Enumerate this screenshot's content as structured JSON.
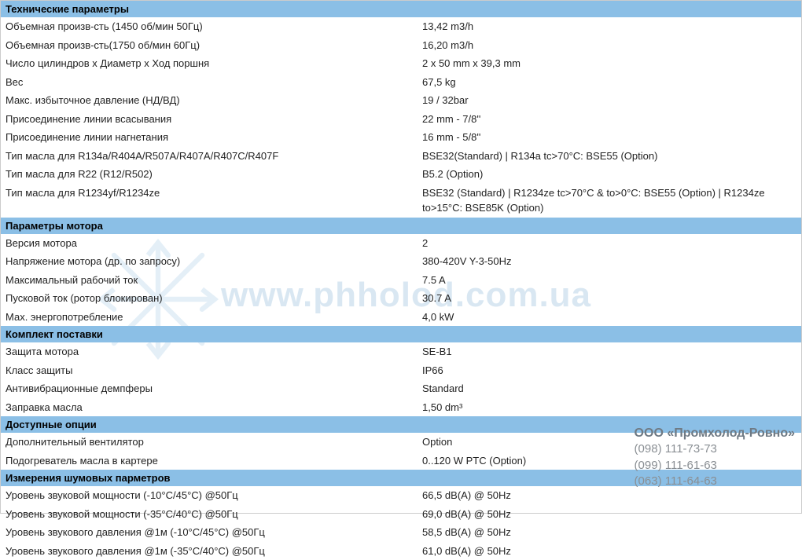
{
  "colors": {
    "header_bg": "#8bbfe6",
    "text": "#222222",
    "watermark_text": "rgba(120,170,210,0.28)",
    "company_text": "#8a8f94"
  },
  "watermark": {
    "url_text": "www.phholod.com.ua"
  },
  "company": {
    "name": "ООО «Промхолод-Ровно»",
    "phone1": "(098) 111-73-73",
    "phone2": "(099) 111-61-63",
    "phone3": "(063) 111-64-63"
  },
  "sections": [
    {
      "title": "Технические параметры",
      "rows": [
        {
          "label": "Объемная произв-сть (1450 об/мин 50Гц)",
          "value": "13,42 m3/h"
        },
        {
          "label": "Объемная произв-сть(1750 об/мин 60Гц)",
          "value": "16,20 m3/h"
        },
        {
          "label": "Число цилиндров x Диаметр x Ход поршня",
          "value": "2 x 50 mm x 39,3 mm"
        },
        {
          "label": "Вес",
          "value": "67,5 kg"
        },
        {
          "label": "Макс. избыточное давление (НД/ВД)",
          "value": "19 / 32bar"
        },
        {
          "label": "Присоединение линии всасывания",
          "value": "22 mm - 7/8''"
        },
        {
          "label": "Присоединение линии нагнетания",
          "value": "16 mm - 5/8''"
        },
        {
          "label": "Тип масла для R134a/R404A/R507A/R407A/R407C/R407F",
          "value": "BSE32(Standard) | R134a tc>70°C: BSE55 (Option)"
        },
        {
          "label": "Тип масла для R22 (R12/R502)",
          "value": "B5.2 (Option)"
        },
        {
          "label": "Тип масла для R1234yf/R1234ze",
          "value": "BSE32 (Standard) | R1234ze tc>70°C & to>0°C: BSE55 (Option) | R1234ze to>15°C: BSE85K (Option)"
        }
      ]
    },
    {
      "title": "Параметры мотора",
      "rows": [
        {
          "label": "Версия мотора",
          "value": "2"
        },
        {
          "label": "Напряжение мотора (др. по запросу)",
          "value": "380-420V Y-3-50Hz"
        },
        {
          "label": "Максимальный рабочий ток",
          "value": "7.5 A"
        },
        {
          "label": "Пусковой ток (ротор блокирован)",
          "value": "30.7 A"
        },
        {
          "label": "Мах. энергопотребление",
          "value": "4,0 kW"
        }
      ]
    },
    {
      "title": "Комплект поставки",
      "rows": [
        {
          "label": "Защита мотора",
          "value": "SE-B1"
        },
        {
          "label": "Класс защиты",
          "value": "IP66"
        },
        {
          "label": "Антивибрационные демпферы",
          "value": "Standard"
        },
        {
          "label": "Заправка масла",
          "value": "1,50 dm³"
        }
      ]
    },
    {
      "title": "Доступные опции",
      "rows": [
        {
          "label": "Дополнительный вентилятор",
          "value": "Option"
        },
        {
          "label": "Подогреватель масла в картере",
          "value": "0..120 W PTC (Option)"
        }
      ]
    },
    {
      "title": "Измерения шумовых парметров",
      "rows": [
        {
          "label": "Уровень звуковой мощности (-10°C/45°C) @50Гц",
          "value": "66,5 dB(A) @ 50Hz"
        },
        {
          "label": "Уровень звуковой мощности (-35°C/40°C) @50Гц",
          "value": "69,0 dB(A) @ 50Hz"
        },
        {
          "label": "Уровень звукового давления @1м (-10°C/45°C) @50Гц",
          "value": "58,5 dB(A) @ 50Hz"
        },
        {
          "label": "Уровень звукового давления @1м (-35°C/40°C) @50Гц",
          "value": "61,0 dB(A) @ 50Hz"
        }
      ]
    }
  ]
}
